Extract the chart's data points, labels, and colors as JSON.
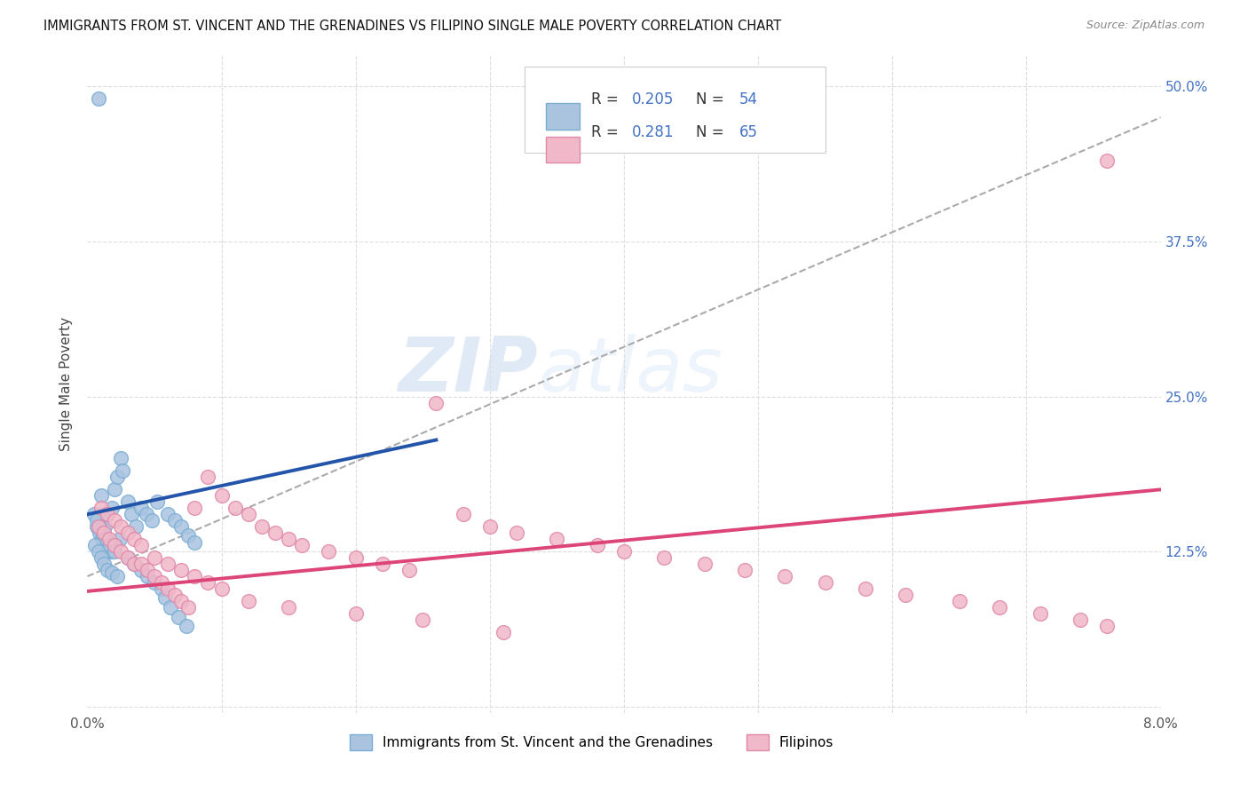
{
  "title": "IMMIGRANTS FROM ST. VINCENT AND THE GRENADINES VS FILIPINO SINGLE MALE POVERTY CORRELATION CHART",
  "source": "Source: ZipAtlas.com",
  "ylabel": "Single Male Poverty",
  "yticks": [
    0.0,
    0.125,
    0.25,
    0.375,
    0.5
  ],
  "ytick_labels": [
    "",
    "12.5%",
    "25.0%",
    "37.5%",
    "50.0%"
  ],
  "xlim": [
    0.0,
    0.08
  ],
  "ylim": [
    -0.005,
    0.525
  ],
  "legend_label_blue": "Immigrants from St. Vincent and the Grenadines",
  "legend_label_pink": "Filipinos",
  "blue_scatter_color": "#aac4e0",
  "blue_edge_color": "#7aadd4",
  "pink_scatter_color": "#f0b8c8",
  "pink_edge_color": "#e088a8",
  "blue_line_color": "#2255aa",
  "pink_line_color": "#dd4477",
  "gray_dash_color": "#aaaaaa",
  "blue_trend_x": [
    0.0,
    0.026
  ],
  "blue_trend_y": [
    0.155,
    0.215
  ],
  "pink_trend_x": [
    0.0,
    0.08
  ],
  "pink_trend_y": [
    0.093,
    0.175
  ],
  "gray_trend_x": [
    0.0,
    0.08
  ],
  "gray_trend_y": [
    0.105,
    0.475
  ],
  "background_color": "#ffffff",
  "grid_color": "#dddddd",
  "watermark": "ZIPatlas",
  "watermark_zip": "ZIP",
  "watermark_atlas": "atlas"
}
